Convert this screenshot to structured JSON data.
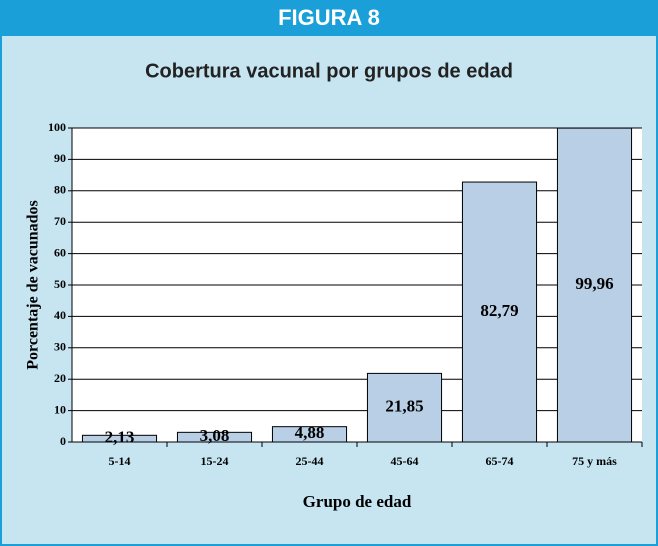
{
  "chart_data": {
    "type": "bar",
    "figure_label": "FIGURA 8",
    "title": "Cobertura vacunal por grupos de edad",
    "x_label": "Grupo de edad",
    "y_label": "Porcentaje de vacunados",
    "categories": [
      "5-14",
      "15-24",
      "25-44",
      "45-64",
      "65-74",
      "75 y más"
    ],
    "values": [
      2.13,
      3.08,
      4.88,
      21.85,
      82.79,
      99.96
    ],
    "value_labels": [
      "2,13",
      "3,08",
      "4,88",
      "21,85",
      "82,79",
      "99,96"
    ],
    "color": "#b9cfe6",
    "ylim": [
      0,
      100
    ],
    "yticks": [
      0,
      10,
      20,
      30,
      40,
      50,
      60,
      70,
      80,
      90,
      100
    ],
    "grid": true
  }
}
